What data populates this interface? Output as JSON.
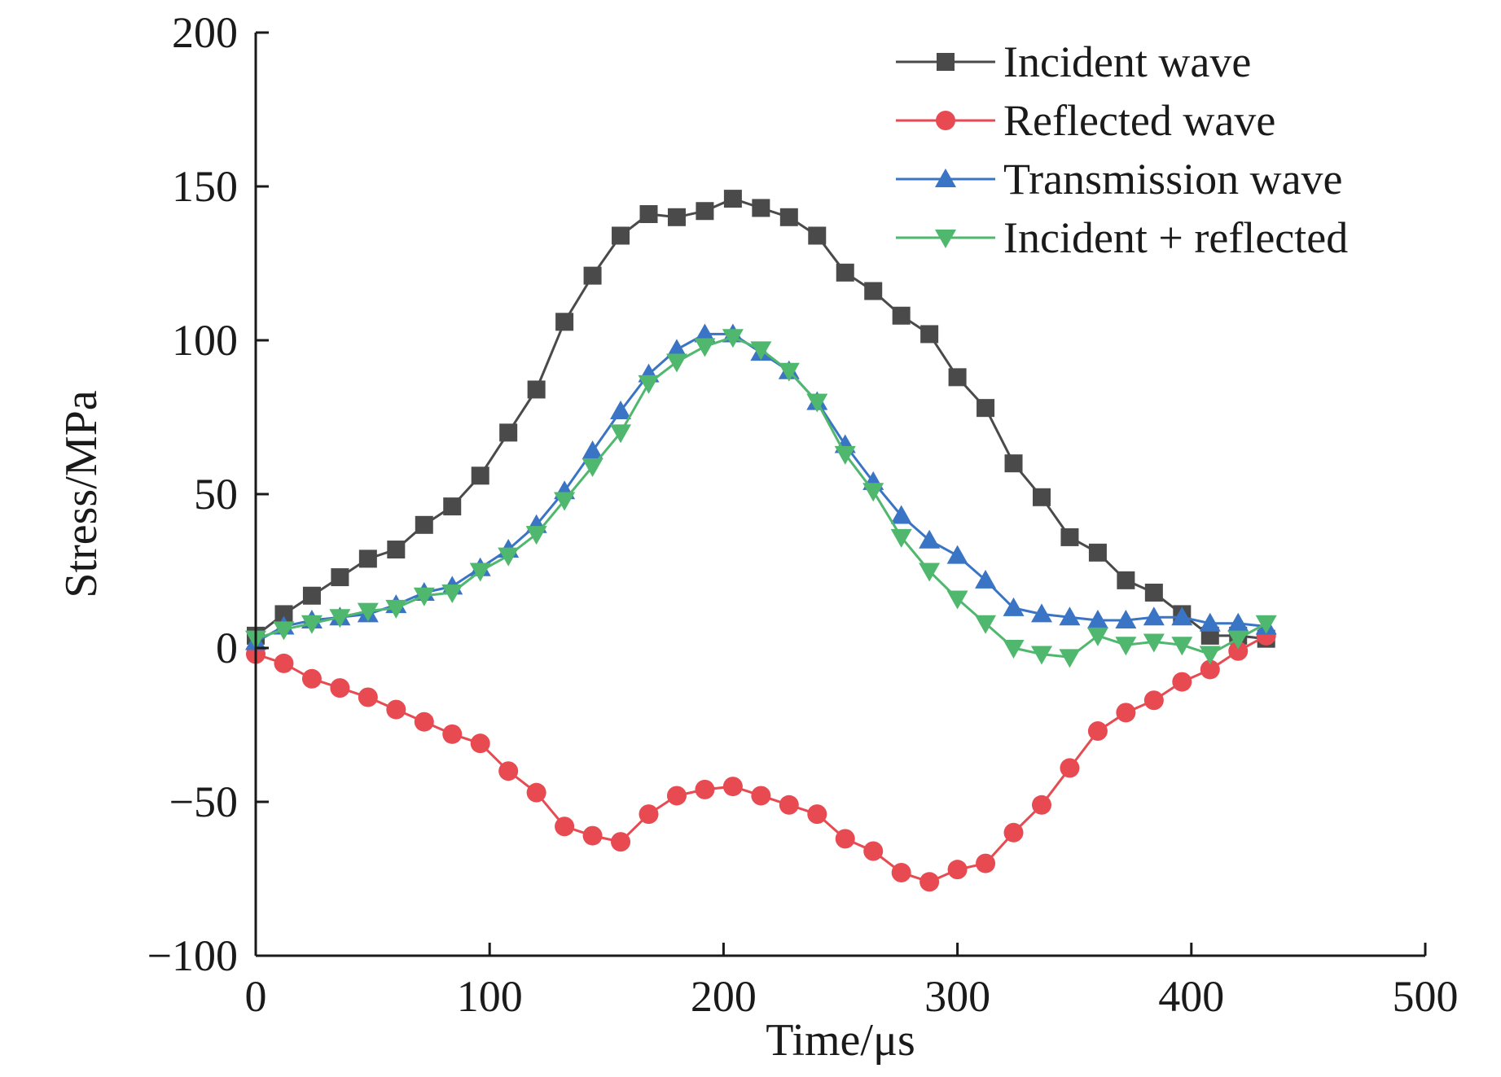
{
  "chart_data": {
    "type": "line",
    "xlabel": "Time/μs",
    "ylabel": "Stress/MPa",
    "xlim": [
      0,
      500
    ],
    "ylim": [
      -100,
      200
    ],
    "xticks": [
      0,
      100,
      200,
      300,
      400,
      500
    ],
    "yticks": [
      -100,
      -50,
      0,
      50,
      100,
      150,
      200
    ],
    "xtick_labels": [
      "0",
      "100",
      "200",
      "300",
      "400",
      "500"
    ],
    "ytick_labels": [
      "−100",
      "−50",
      "0",
      "50",
      "100",
      "150",
      "200"
    ],
    "grid": false,
    "legend_position": "top-right",
    "series": [
      {
        "name": "Incident wave",
        "color": "#4a4a4a",
        "marker": "square",
        "x": [
          0,
          12,
          24,
          36,
          48,
          60,
          72,
          84,
          96,
          108,
          120,
          132,
          144,
          156,
          168,
          180,
          192,
          204,
          216,
          228,
          240,
          252,
          264,
          276,
          288,
          300,
          312,
          324,
          336,
          348,
          360,
          372,
          384,
          396,
          408,
          420,
          432
        ],
        "y": [
          4,
          11,
          17,
          23,
          29,
          32,
          40,
          46,
          56,
          70,
          84,
          106,
          121,
          134,
          141,
          140,
          142,
          146,
          143,
          140,
          134,
          122,
          116,
          108,
          102,
          88,
          78,
          60,
          49,
          36,
          31,
          22,
          18,
          11,
          4,
          4,
          3
        ]
      },
      {
        "name": "Reflected wave",
        "color": "#e84a52",
        "marker": "circle",
        "x": [
          0,
          12,
          24,
          36,
          48,
          60,
          72,
          84,
          96,
          108,
          120,
          132,
          144,
          156,
          168,
          180,
          192,
          204,
          216,
          228,
          240,
          252,
          264,
          276,
          288,
          300,
          312,
          324,
          336,
          348,
          360,
          372,
          384,
          396,
          408,
          420,
          432
        ],
        "y": [
          -2,
          -5,
          -10,
          -13,
          -16,
          -20,
          -24,
          -28,
          -31,
          -40,
          -47,
          -58,
          -61,
          -63,
          -54,
          -48,
          -46,
          -45,
          -48,
          -51,
          -54,
          -62,
          -66,
          -73,
          -76,
          -72,
          -70,
          -60,
          -51,
          -39,
          -27,
          -21,
          -17,
          -11,
          -7,
          -1,
          4
        ]
      },
      {
        "name": "Transmission wave",
        "color": "#3a74c4",
        "marker": "triangle-up",
        "x": [
          0,
          12,
          24,
          36,
          48,
          60,
          72,
          84,
          96,
          108,
          120,
          132,
          144,
          156,
          168,
          180,
          192,
          204,
          216,
          228,
          240,
          252,
          264,
          276,
          288,
          300,
          312,
          324,
          336,
          348,
          360,
          372,
          384,
          396,
          408,
          420,
          432
        ],
        "y": [
          2,
          7,
          9,
          10,
          11,
          14,
          18,
          20,
          26,
          32,
          40,
          51,
          64,
          77,
          89,
          97,
          102,
          102,
          96,
          90,
          80,
          66,
          54,
          43,
          35,
          30,
          22,
          13,
          11,
          10,
          9,
          9,
          10,
          10,
          8,
          8,
          7
        ]
      },
      {
        "name": "Incident + reflected",
        "color": "#4fb76e",
        "marker": "triangle-down",
        "x": [
          0,
          12,
          24,
          36,
          48,
          60,
          72,
          84,
          96,
          108,
          120,
          132,
          144,
          156,
          168,
          180,
          192,
          204,
          216,
          228,
          240,
          252,
          264,
          276,
          288,
          300,
          312,
          324,
          336,
          348,
          360,
          372,
          384,
          396,
          408,
          420,
          432
        ],
        "y": [
          3,
          6,
          8,
          10,
          12,
          13,
          17,
          18,
          25,
          30,
          37,
          48,
          59,
          70,
          86,
          93,
          98,
          101,
          97,
          90,
          80,
          63,
          51,
          36,
          25,
          16,
          8,
          0,
          -2,
          -3,
          4,
          1,
          2,
          1,
          -2,
          3,
          8
        ]
      }
    ]
  }
}
